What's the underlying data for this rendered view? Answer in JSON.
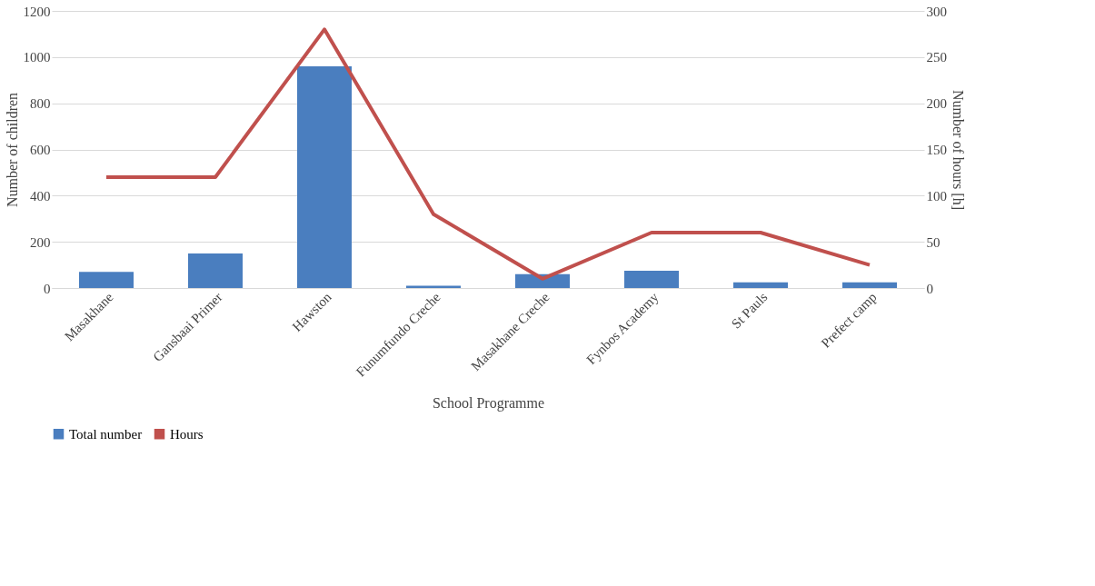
{
  "chart_data": {
    "type": "bar",
    "xlabel": "School Programme",
    "ylabel": "Number of children",
    "y2label": "Number of hours [h]",
    "categories": [
      "Masakhane",
      "Gansbaai Primer",
      "Hawston",
      "Funumfundo Creche",
      "Masakhane Creche",
      "Fynbos Academy",
      "St Pauls",
      "Prefect camp"
    ],
    "series": [
      {
        "name": "Total number",
        "color": "#4a7ebf",
        "values": [
          70,
          150,
          960,
          10,
          60,
          75,
          25,
          25
        ]
      },
      {
        "name": "Hours",
        "type": "line",
        "axis": "y2",
        "color": "#c0504d",
        "values": [
          120,
          120,
          280,
          80,
          10,
          60,
          60,
          25
        ]
      }
    ],
    "ylim": [
      0,
      1200
    ],
    "yticks": [
      0,
      200,
      400,
      600,
      800,
      1000,
      1200
    ],
    "y2lim": [
      0,
      300
    ],
    "y2ticks": [
      0,
      50,
      100,
      150,
      200,
      250,
      300
    ],
    "grid": "y",
    "legend": "bottom",
    "marker": "none"
  }
}
